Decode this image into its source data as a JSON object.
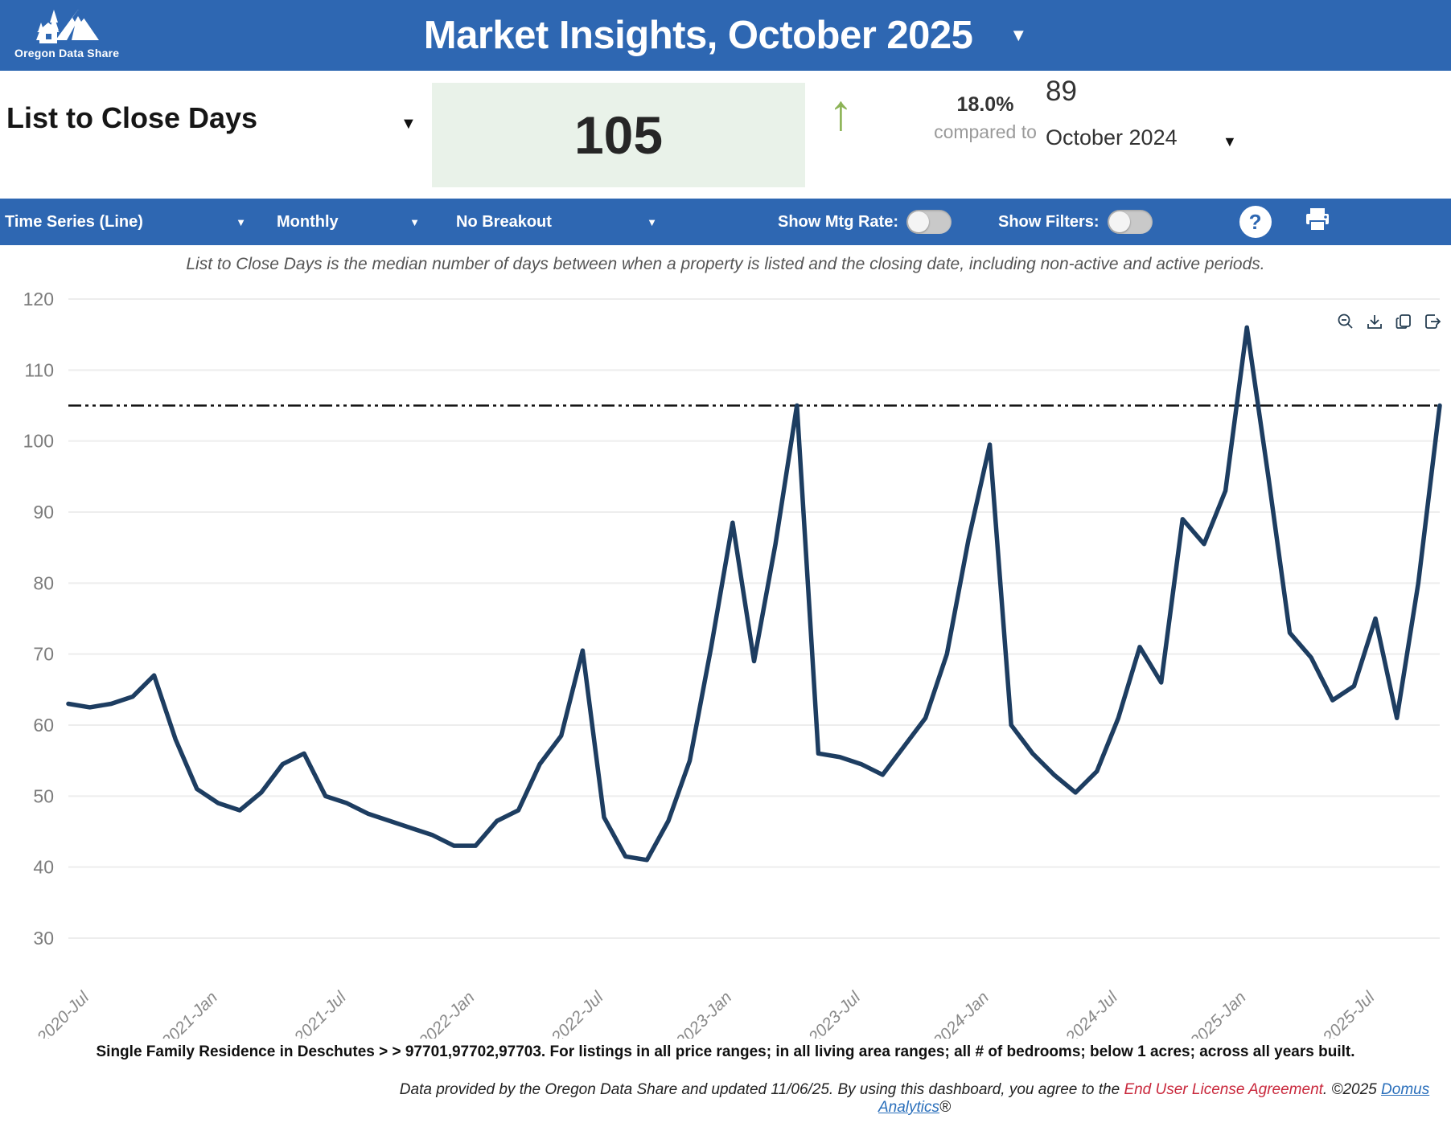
{
  "header": {
    "title": "Market Insights, October 2025",
    "logo_text": "Oregon Data Share"
  },
  "metric_bar": {
    "metric_label": "List to Close Days",
    "current_value": "105",
    "change_pct": "18.0%",
    "compared_to_label": "compared to",
    "comparison_value": "89",
    "comparison_period": "October 2024",
    "trend_direction": "up"
  },
  "toolbar": {
    "chart_type": "Time Series (Line)",
    "frequency": "Monthly",
    "breakout": "No Breakout",
    "show_mtg_rate_label": "Show Mtg Rate:",
    "show_filters_label": "Show Filters:",
    "mtg_rate_on": false,
    "filters_on": false,
    "help_label": "?"
  },
  "subtitle": "List to Close Days is the median number of days between when a property is listed and the closing date, including non-active and active periods.",
  "chart_data": {
    "type": "line",
    "title": "",
    "xlabel": "",
    "ylabel": "",
    "ylim": [
      30,
      120
    ],
    "grid": true,
    "reference_line": 105,
    "months": [
      "2020-06",
      "2020-07",
      "2020-08",
      "2020-09",
      "2020-10",
      "2020-11",
      "2020-12",
      "2021-01",
      "2021-02",
      "2021-03",
      "2021-04",
      "2021-05",
      "2021-06",
      "2021-07",
      "2021-08",
      "2021-09",
      "2021-10",
      "2021-11",
      "2021-12",
      "2022-01",
      "2022-02",
      "2022-03",
      "2022-04",
      "2022-05",
      "2022-06",
      "2022-07",
      "2022-08",
      "2022-09",
      "2022-10",
      "2022-11",
      "2022-12",
      "2023-01",
      "2023-02",
      "2023-03",
      "2023-04",
      "2023-05",
      "2023-06",
      "2023-07",
      "2023-08",
      "2023-09",
      "2023-10",
      "2023-11",
      "2023-12",
      "2024-01",
      "2024-02",
      "2024-03",
      "2024-04",
      "2024-05",
      "2024-06",
      "2024-07",
      "2024-08",
      "2024-09",
      "2024-10",
      "2024-11",
      "2024-12",
      "2025-01",
      "2025-02",
      "2025-03",
      "2025-04",
      "2025-05",
      "2025-06",
      "2025-07",
      "2025-08",
      "2025-09",
      "2025-10"
    ],
    "values": [
      63,
      62.5,
      63,
      64,
      67,
      58,
      51,
      49,
      48,
      50.5,
      54.5,
      56,
      50,
      49,
      47.5,
      46.5,
      45.5,
      44.5,
      43,
      43,
      46.5,
      48,
      54.5,
      58.5,
      70.5,
      47,
      41.5,
      41,
      46.5,
      55,
      71,
      88.5,
      69,
      85.5,
      105,
      56,
      55.5,
      54.5,
      53,
      57,
      61,
      70,
      86,
      99.5,
      60,
      56,
      53,
      50.5,
      53.5,
      61,
      71,
      66,
      89,
      85.5,
      93,
      116,
      95,
      73,
      69.5,
      63.5,
      65.5,
      75,
      61,
      80,
      105
    ],
    "x_tick_indices": [
      1,
      7,
      13,
      19,
      25,
      31,
      37,
      43,
      49,
      55,
      61
    ],
    "x_tick_labels": [
      "2020-Jul",
      "2021-Jan",
      "2021-Jul",
      "2022-Jan",
      "2022-Jul",
      "2023-Jan",
      "2023-Jul",
      "2024-Jan",
      "2024-Jul",
      "2025-Jan",
      "2025-Jul"
    ],
    "y_tick_step": 10,
    "legend": "none"
  },
  "footnote": "Single Family Residence in Deschutes > > 97701,97702,97703. For listings in all price ranges; in all living area ranges; all # of bedrooms; below 1 acres; across all years built.",
  "footer": {
    "text_before": "Data provided by the Oregon Data Share and updated 11/06/25.  By using this dashboard, you agree to the ",
    "license_link": "End User License Agreement",
    "text_middle": ".  ©2025 ",
    "brand_link": "Domus Analytics",
    "registered": "®"
  },
  "icons": {
    "caret_down": "▼",
    "up_arrow": "↑"
  },
  "colors": {
    "primary_blue": "#2e67b2",
    "line_navy": "#1d3d61",
    "green_box_bg": "#e9f2e9",
    "arrow_green": "#8cb356",
    "grid_gray": "#ededed",
    "axis_label_gray": "#8a8a8a",
    "reference_black": "#111111",
    "link_red": "#c9283c",
    "link_blue": "#2a6fbb"
  }
}
